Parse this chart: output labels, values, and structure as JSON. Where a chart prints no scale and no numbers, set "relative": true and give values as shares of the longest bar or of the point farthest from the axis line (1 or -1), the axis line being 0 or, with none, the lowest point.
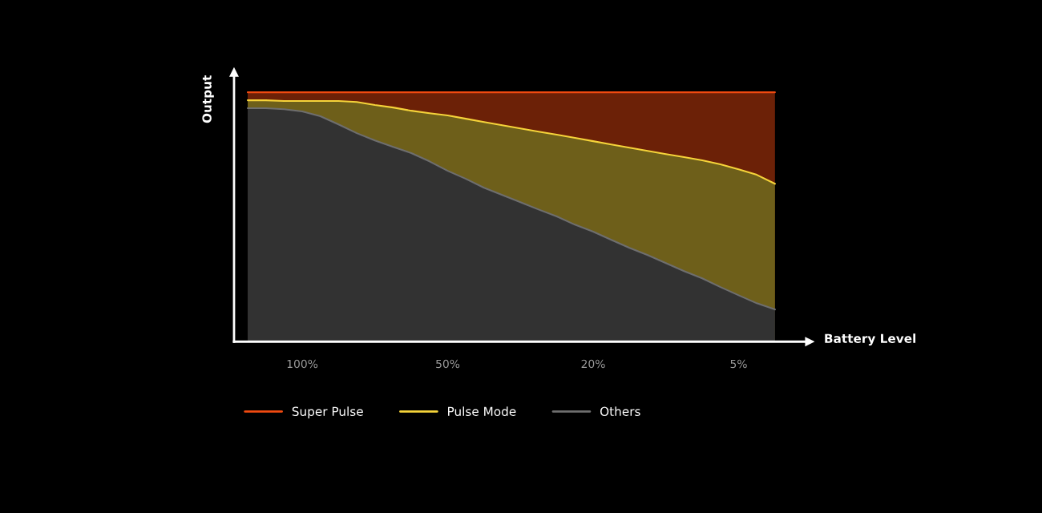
{
  "chart_data": {
    "type": "area",
    "relative": true,
    "xlabel": "Battery Level",
    "ylabel": "Output",
    "categories": [
      null,
      null,
      null,
      "100%",
      null,
      null,
      null,
      null,
      null,
      null,
      null,
      "50%",
      null,
      null,
      null,
      null,
      null,
      null,
      null,
      "20%",
      null,
      null,
      null,
      null,
      null,
      null,
      null,
      "5%",
      null,
      null
    ],
    "grid": false,
    "legend": "bottom",
    "tick_labels": "x",
    "series": [
      {
        "name": "Super Pulse",
        "color": "#f04a10",
        "values": [
          1.0,
          1.0,
          1.0,
          1.0,
          1.0,
          1.0,
          1.0,
          1.0,
          1.0,
          1.0,
          1.0,
          1.0,
          1.0,
          1.0,
          1.0,
          1.0,
          1.0,
          1.0,
          1.0,
          1.0,
          1.0,
          1.0,
          1.0,
          1.0,
          1.0,
          1.0,
          1.0,
          1.0,
          1.0,
          1.0
        ]
      },
      {
        "name": "Pulse Mode",
        "color": "#f5d33a",
        "values": [
          0.968,
          0.968,
          0.965,
          0.965,
          0.965,
          0.965,
          0.961,
          0.949,
          0.939,
          0.926,
          0.916,
          0.907,
          0.894,
          0.881,
          0.868,
          0.855,
          0.842,
          0.83,
          0.817,
          0.804,
          0.791,
          0.778,
          0.765,
          0.752,
          0.74,
          0.727,
          0.711,
          0.691,
          0.669,
          0.633
        ]
      },
      {
        "name": "Others",
        "color": "#6e6e6e",
        "values": [
          0.936,
          0.936,
          0.932,
          0.923,
          0.904,
          0.871,
          0.836,
          0.807,
          0.781,
          0.756,
          0.723,
          0.685,
          0.653,
          0.617,
          0.588,
          0.559,
          0.53,
          0.502,
          0.469,
          0.441,
          0.408,
          0.376,
          0.347,
          0.315,
          0.283,
          0.254,
          0.219,
          0.186,
          0.154,
          0.129
        ]
      }
    ]
  }
}
